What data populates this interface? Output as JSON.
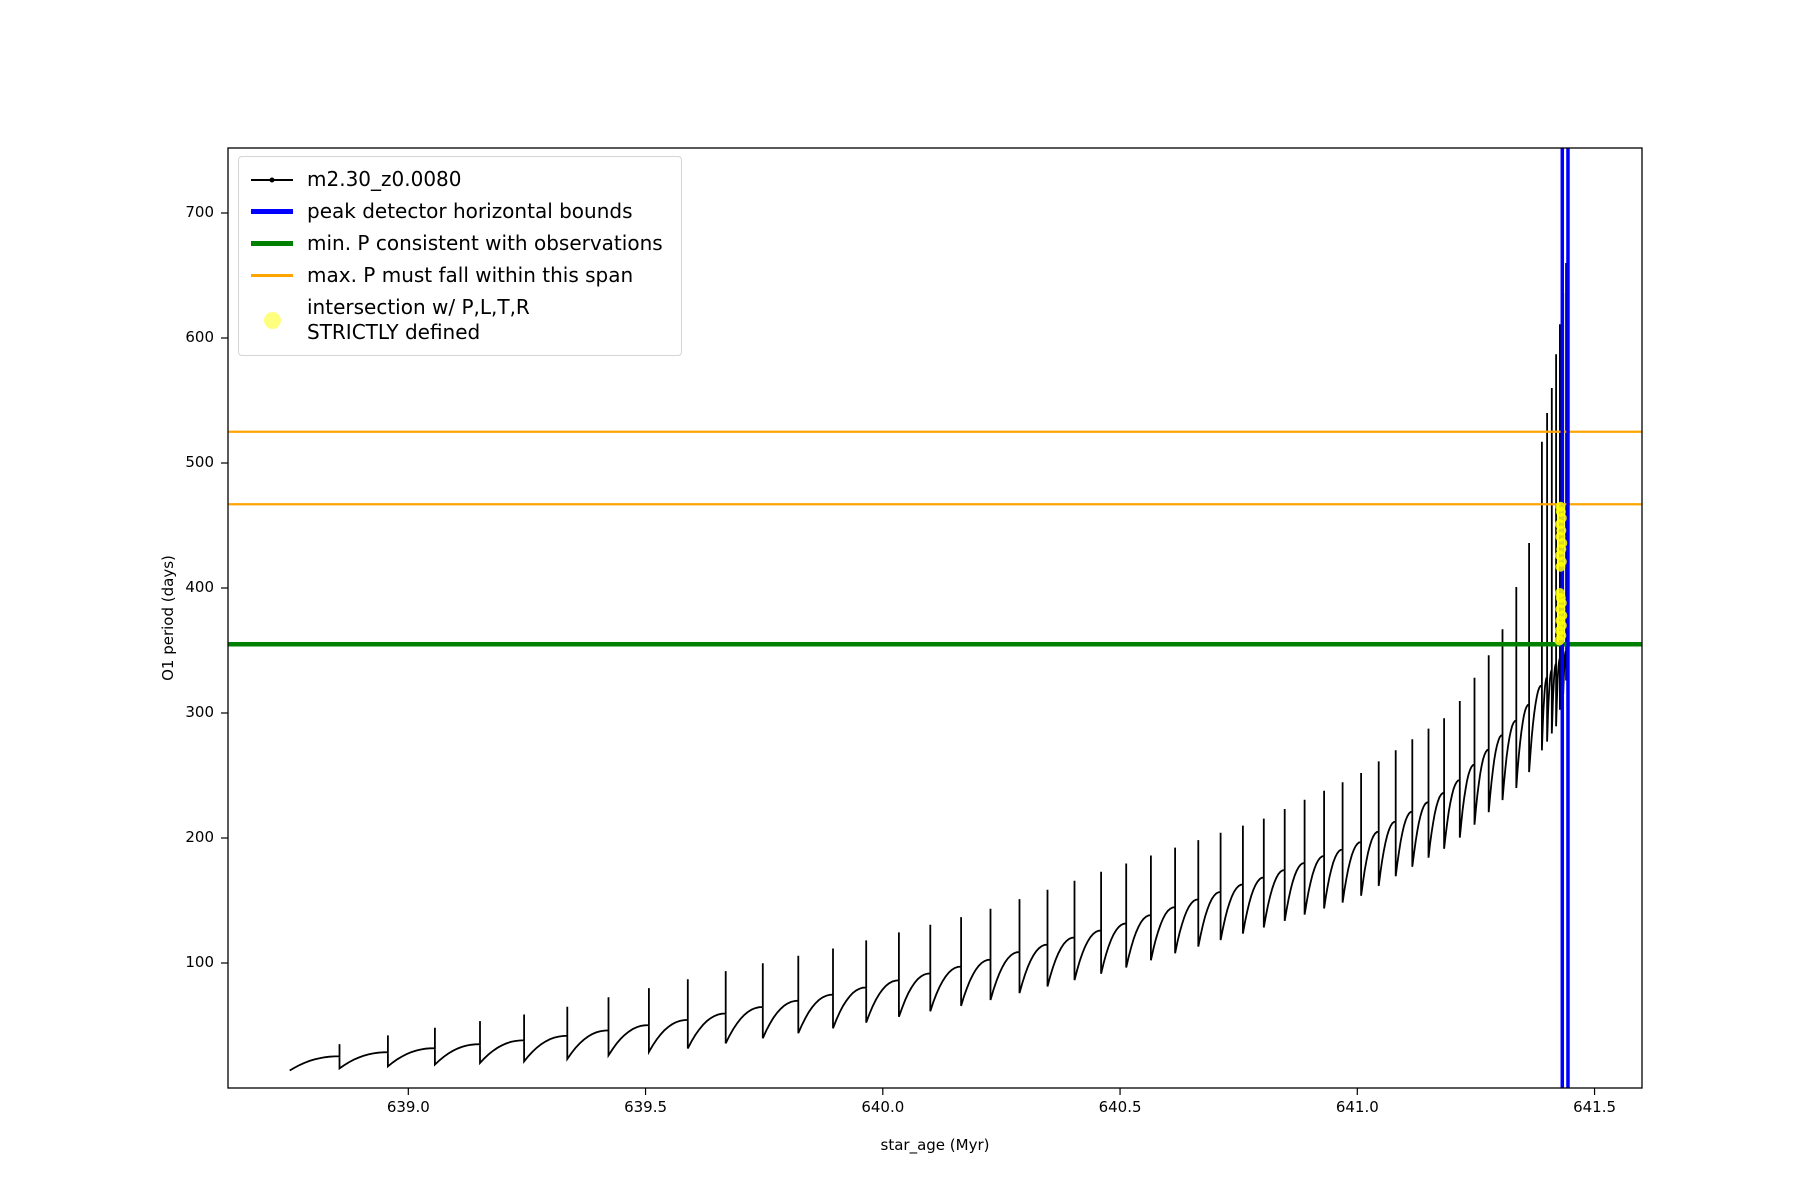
{
  "figure": {
    "background": "#ffffff"
  },
  "axes": {
    "xlabel": "star_age (Myr)",
    "ylabel": "O1 period (days)",
    "xlim": [
      638.62,
      641.6
    ],
    "ylim": [
      0,
      752
    ],
    "x_ticks": {
      "values": [
        639.0,
        639.5,
        640.0,
        640.5,
        641.0,
        641.5
      ],
      "labels": [
        "639.0",
        "639.5",
        "640.0",
        "640.5",
        "641.0",
        "641.5"
      ]
    },
    "y_ticks": {
      "values": [
        100,
        200,
        300,
        400,
        500,
        600,
        700
      ],
      "labels": [
        "100",
        "200",
        "300",
        "400",
        "500",
        "600",
        "700"
      ]
    }
  },
  "legend": {
    "items": [
      {
        "label": "m2.30_z0.0080",
        "marker": "black-line-dot"
      },
      {
        "label": "peak detector horizontal bounds",
        "marker": "blue-thick-line"
      },
      {
        "label": "min. P consistent with observations",
        "marker": "green-thick-line"
      },
      {
        "label": "max. P must fall within this span",
        "marker": "orange-line"
      },
      {
        "label": "intersection w/ P,L,T,R\nSTRICTLY defined",
        "marker": "yellow-dot"
      }
    ]
  },
  "chart_data": {
    "type": "line",
    "title": "",
    "xlabel": "star_age (Myr)",
    "ylabel": "O1 period (days)",
    "xlim": [
      638.62,
      641.6
    ],
    "ylim": [
      0,
      752
    ],
    "grid": false,
    "legend_position": "upper-left",
    "series": [
      {
        "name": "m2.30_z0.0080",
        "color": "#000000",
        "style": "sawtooth-pulsation",
        "line_width": 1.8,
        "tooth_boundaries_x": [
          638.75,
          638.855,
          638.957,
          639.056,
          639.151,
          639.244,
          639.335,
          639.422,
          639.507,
          639.589,
          639.669,
          639.747,
          639.822,
          639.895,
          639.965,
          640.034,
          640.1,
          640.165,
          640.227,
          640.288,
          640.347,
          640.404,
          640.46,
          640.513,
          640.565,
          640.616,
          640.665,
          640.712,
          640.759,
          640.803,
          640.847,
          640.889,
          640.93,
          640.969,
          641.008,
          641.045,
          641.081,
          641.116,
          641.15,
          641.183,
          641.216,
          641.247,
          641.277,
          641.306,
          641.335,
          641.362,
          641.389,
          641.4,
          641.41,
          641.419,
          641.427,
          641.434,
          641.44,
          641.445
        ],
        "min_envelope": [
          [
            638.75,
            14
          ],
          [
            639.0,
            18
          ],
          [
            639.3,
            22
          ],
          [
            639.6,
            32
          ],
          [
            639.9,
            48
          ],
          [
            640.2,
            68
          ],
          [
            640.5,
            95
          ],
          [
            640.8,
            128
          ],
          [
            641.0,
            152
          ],
          [
            641.2,
            195
          ],
          [
            641.35,
            245
          ],
          [
            641.42,
            290
          ],
          [
            641.445,
            335
          ]
        ],
        "base_envelope": [
          [
            638.75,
            22
          ],
          [
            639.0,
            30
          ],
          [
            639.3,
            40
          ],
          [
            639.6,
            55
          ],
          [
            639.9,
            75
          ],
          [
            640.2,
            100
          ],
          [
            640.5,
            130
          ],
          [
            640.8,
            168
          ],
          [
            641.0,
            195
          ],
          [
            641.2,
            240
          ],
          [
            641.35,
            300
          ],
          [
            641.42,
            340
          ],
          [
            641.445,
            352
          ]
        ],
        "spike_envelope": [
          [
            638.75,
            28
          ],
          [
            639.0,
            45
          ],
          [
            639.3,
            62
          ],
          [
            639.6,
            88
          ],
          [
            639.9,
            112
          ],
          [
            640.2,
            140
          ],
          [
            640.5,
            178
          ],
          [
            640.8,
            215
          ],
          [
            641.0,
            250
          ],
          [
            641.2,
            300
          ],
          [
            641.3,
            360
          ],
          [
            641.36,
            430
          ],
          [
            641.39,
            520
          ],
          [
            641.41,
            560
          ],
          [
            641.43,
            620
          ],
          [
            641.445,
            680
          ]
        ]
      }
    ],
    "vlines": {
      "label": "peak detector horizontal bounds",
      "color": "#0000ff",
      "line_width": 3.5,
      "x": [
        641.432,
        641.444
      ]
    },
    "hlines": [
      {
        "label": "min. P consistent with observations",
        "color": "#008000",
        "line_width": 4.5,
        "y": 355
      },
      {
        "label": "max. P must fall within this span",
        "color": "#ffa500",
        "line_width": 2.2,
        "y": 467
      },
      {
        "label": "max. P must fall within this span",
        "color": "#ffa500",
        "line_width": 2.2,
        "y": 525
      }
    ],
    "scatter": {
      "name": "intersection w/ P,L,T,R STRICTLY defined",
      "color": "#ffff00",
      "alpha": 0.85,
      "marker_radius": 5,
      "points": [
        [
          641.426,
          358
        ],
        [
          641.43,
          362
        ],
        [
          641.427,
          366
        ],
        [
          641.431,
          370
        ],
        [
          641.428,
          374
        ],
        [
          641.432,
          378
        ],
        [
          641.428,
          383
        ],
        [
          641.431,
          388
        ],
        [
          641.429,
          392
        ],
        [
          641.427,
          396
        ],
        [
          641.428,
          417
        ],
        [
          641.431,
          421
        ],
        [
          641.427,
          426
        ],
        [
          641.43,
          431
        ],
        [
          641.432,
          436
        ],
        [
          641.428,
          441
        ],
        [
          641.43,
          446
        ],
        [
          641.427,
          451
        ],
        [
          641.431,
          456
        ],
        [
          641.429,
          461
        ],
        [
          641.428,
          465
        ]
      ]
    }
  }
}
